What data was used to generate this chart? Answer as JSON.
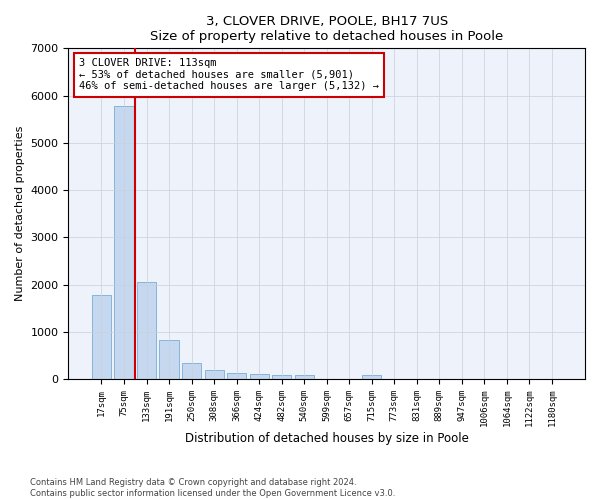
{
  "title1": "3, CLOVER DRIVE, POOLE, BH17 7US",
  "title2": "Size of property relative to detached houses in Poole",
  "xlabel": "Distribution of detached houses by size in Poole",
  "ylabel": "Number of detached properties",
  "bar_color": "#c5d8f0",
  "bar_edge_color": "#7aadd4",
  "categories": [
    "17sqm",
    "75sqm",
    "133sqm",
    "191sqm",
    "250sqm",
    "308sqm",
    "366sqm",
    "424sqm",
    "482sqm",
    "540sqm",
    "599sqm",
    "657sqm",
    "715sqm",
    "773sqm",
    "831sqm",
    "889sqm",
    "947sqm",
    "1006sqm",
    "1064sqm",
    "1122sqm",
    "1180sqm"
  ],
  "values": [
    1780,
    5780,
    2060,
    830,
    340,
    200,
    130,
    110,
    95,
    85,
    0,
    0,
    95,
    0,
    0,
    0,
    0,
    0,
    0,
    0,
    0
  ],
  "ylim": [
    0,
    7000
  ],
  "yticks": [
    0,
    1000,
    2000,
    3000,
    4000,
    5000,
    6000,
    7000
  ],
  "vline_color": "#cc0000",
  "annotation_text": "3 CLOVER DRIVE: 113sqm\n← 53% of detached houses are smaller (5,901)\n46% of semi-detached houses are larger (5,132) →",
  "annotation_box_color": "#ffffff",
  "annotation_box_edge": "#cc0000",
  "footer1": "Contains HM Land Registry data © Crown copyright and database right 2024.",
  "footer2": "Contains public sector information licensed under the Open Government Licence v3.0.",
  "background_color": "#edf2fb",
  "grid_color": "#c8d0dc"
}
